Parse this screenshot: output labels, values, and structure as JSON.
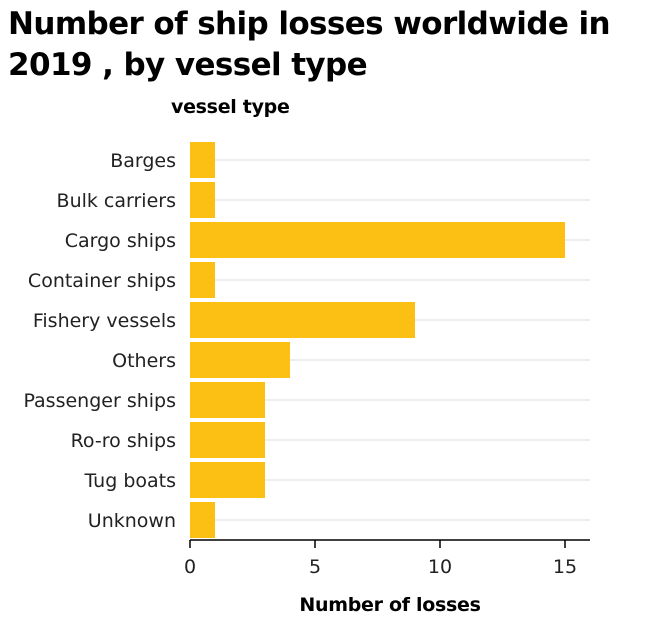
{
  "chart_data": {
    "type": "bar",
    "orientation": "horizontal",
    "title": "Number of ship losses worldwide in 2019 , by vessel type",
    "ylabel": "vessel type",
    "xlabel": "Number of losses",
    "categories": [
      "Barges",
      "Bulk carriers",
      "Cargo ships",
      "Container ships",
      "Fishery vessels",
      "Others",
      "Passenger ships",
      "Ro-ro ships",
      "Tug boats",
      "Unknown"
    ],
    "values": [
      1,
      1,
      15,
      1,
      9,
      4,
      3,
      3,
      3,
      1
    ],
    "xlim": [
      0,
      16
    ],
    "xticks": [
      0,
      5,
      10,
      15
    ],
    "grid": true,
    "bar_color": "#fcbf13",
    "grid_color": "#dddddd"
  }
}
